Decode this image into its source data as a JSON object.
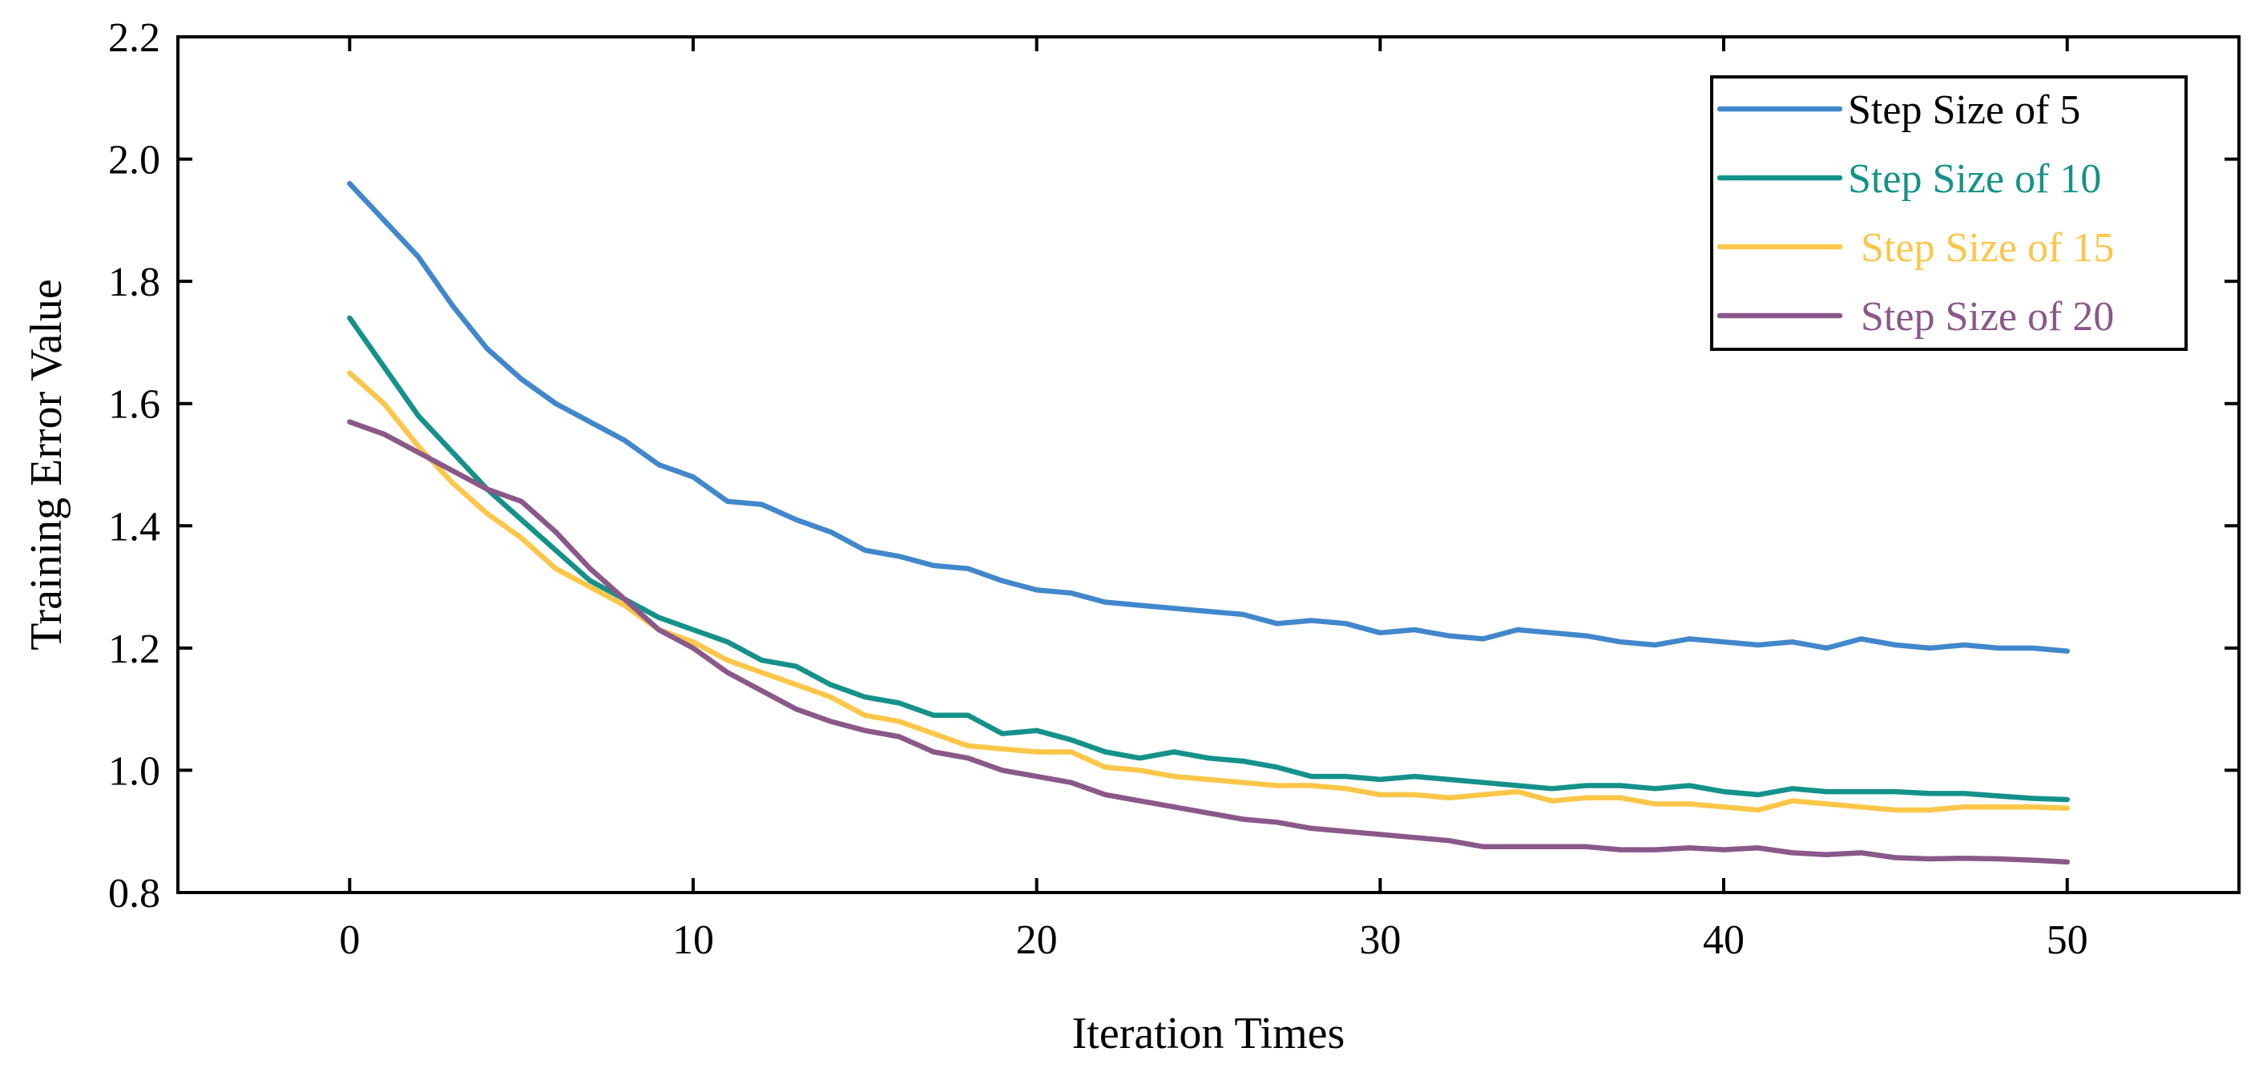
{
  "chart_data": {
    "type": "line",
    "title": "",
    "xlabel": "Iteration Times",
    "ylabel": "Training Error Value",
    "xlim": [
      -5,
      55
    ],
    "ylim": [
      0.8,
      2.2
    ],
    "xticks": [
      0,
      10,
      20,
      30,
      40,
      50
    ],
    "yticks": [
      0.8,
      1.0,
      1.2,
      1.4,
      1.6,
      1.8,
      2.0,
      2.2
    ],
    "xtick_labels": [
      "0",
      "10",
      "20",
      "30",
      "40",
      "50"
    ],
    "ytick_labels": [
      "0.8",
      "1.0",
      "1.2",
      "1.4",
      "1.6",
      "1.8",
      "2.0",
      "2.2"
    ],
    "legend_position": "top-right",
    "x": [
      0,
      1,
      2,
      3,
      4,
      5,
      6,
      7,
      8,
      9,
      10,
      11,
      12,
      13,
      14,
      15,
      16,
      17,
      18,
      19,
      20,
      21,
      22,
      23,
      24,
      25,
      26,
      27,
      28,
      29,
      30,
      31,
      32,
      33,
      34,
      35,
      36,
      37,
      38,
      39,
      40,
      41,
      42,
      43,
      44,
      45,
      46,
      47,
      48,
      49,
      50
    ],
    "series": [
      {
        "name": "Step Size of 5",
        "color": "#4187cc",
        "label_color": "#000000",
        "values": [
          1.96,
          1.9,
          1.84,
          1.76,
          1.69,
          1.64,
          1.6,
          1.57,
          1.54,
          1.5,
          1.48,
          1.44,
          1.435,
          1.41,
          1.39,
          1.36,
          1.35,
          1.335,
          1.33,
          1.31,
          1.295,
          1.29,
          1.275,
          1.27,
          1.265,
          1.26,
          1.255,
          1.24,
          1.245,
          1.24,
          1.225,
          1.23,
          1.22,
          1.215,
          1.23,
          1.225,
          1.22,
          1.21,
          1.205,
          1.215,
          1.21,
          1.205,
          1.21,
          1.2,
          1.215,
          1.205,
          1.2,
          1.205,
          1.2,
          1.2,
          1.195
        ]
      },
      {
        "name": "Step Size of 10",
        "color": "#14928a",
        "label_color": "#14928a",
        "values": [
          1.74,
          1.66,
          1.58,
          1.52,
          1.46,
          1.41,
          1.36,
          1.31,
          1.28,
          1.25,
          1.23,
          1.21,
          1.18,
          1.17,
          1.14,
          1.12,
          1.11,
          1.09,
          1.09,
          1.06,
          1.065,
          1.05,
          1.03,
          1.02,
          1.03,
          1.02,
          1.015,
          1.005,
          0.99,
          0.99,
          0.985,
          0.99,
          0.985,
          0.98,
          0.975,
          0.97,
          0.975,
          0.975,
          0.97,
          0.975,
          0.965,
          0.96,
          0.97,
          0.965,
          0.965,
          0.965,
          0.962,
          0.962,
          0.958,
          0.954,
          0.952
        ]
      },
      {
        "name": "Step Size of 15",
        "color": "#fcc649",
        "label_color": "#fcc649",
        "values": [
          1.65,
          1.6,
          1.53,
          1.47,
          1.42,
          1.38,
          1.33,
          1.3,
          1.27,
          1.23,
          1.21,
          1.18,
          1.16,
          1.14,
          1.12,
          1.09,
          1.08,
          1.06,
          1.04,
          1.035,
          1.03,
          1.03,
          1.005,
          1.0,
          0.99,
          0.985,
          0.98,
          0.975,
          0.975,
          0.97,
          0.96,
          0.96,
          0.955,
          0.96,
          0.965,
          0.95,
          0.955,
          0.955,
          0.945,
          0.945,
          0.94,
          0.935,
          0.95,
          0.945,
          0.94,
          0.935,
          0.935,
          0.94,
          0.94,
          0.94,
          0.938
        ]
      },
      {
        "name": "Step Size of 20",
        "color": "#8a5889",
        "label_color": "#8a5889",
        "values": [
          1.57,
          1.55,
          1.52,
          1.49,
          1.46,
          1.44,
          1.39,
          1.33,
          1.28,
          1.23,
          1.2,
          1.16,
          1.13,
          1.1,
          1.08,
          1.065,
          1.055,
          1.03,
          1.02,
          1.0,
          0.99,
          0.98,
          0.96,
          0.95,
          0.94,
          0.93,
          0.92,
          0.915,
          0.905,
          0.9,
          0.895,
          0.89,
          0.885,
          0.875,
          0.875,
          0.875,
          0.875,
          0.87,
          0.87,
          0.873,
          0.87,
          0.873,
          0.865,
          0.862,
          0.865,
          0.857,
          0.855,
          0.856,
          0.855,
          0.853,
          0.85
        ]
      }
    ]
  }
}
